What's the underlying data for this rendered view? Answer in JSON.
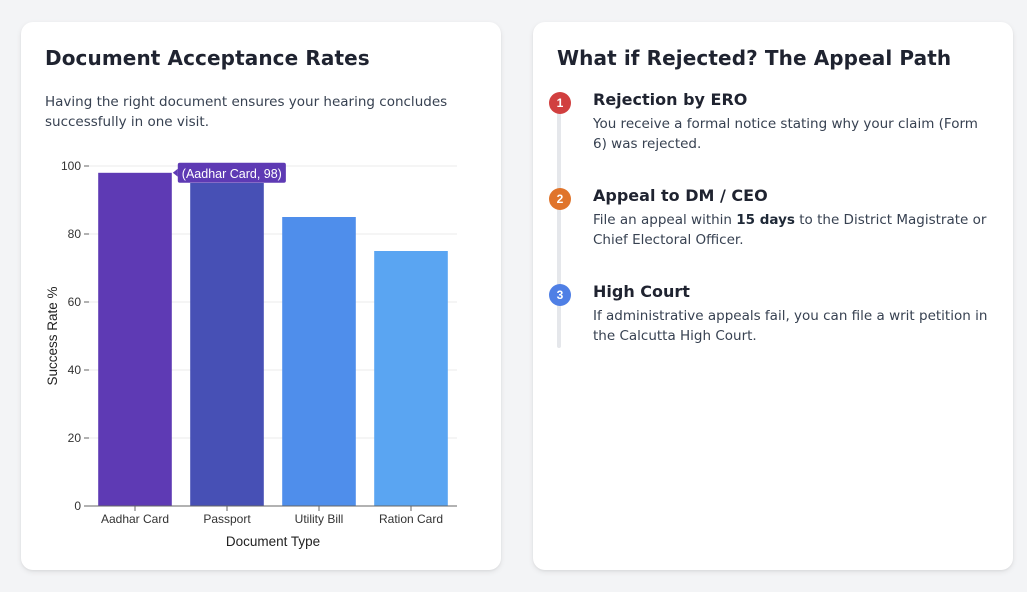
{
  "left_card": {
    "title": "Document Acceptance Rates",
    "description": "Having the right document ensures your hearing concludes successfully in one visit."
  },
  "chart_data": {
    "type": "bar",
    "categories": [
      "Aadhar Card",
      "Passport",
      "Utility Bill",
      "Ration Card"
    ],
    "values": [
      98,
      95,
      85,
      75
    ],
    "colors": [
      "#5e3ab4",
      "#4750b5",
      "#4f8eeb",
      "#5aa5f2"
    ],
    "xlabel": "Document Type",
    "ylabel": "Success Rate %",
    "ylim": [
      0,
      100
    ],
    "yticks": [
      0,
      20,
      40,
      60,
      80,
      100
    ],
    "grid": true,
    "tooltip": "(Aadhar Card, 98)",
    "tooltip_color": "#5e3ab4"
  },
  "right_card": {
    "title": "What if Rejected? The Appeal Path",
    "steps": [
      {
        "number": "1",
        "title": "Rejection by ERO",
        "desc": "You receive a formal notice stating why your claim (Form 6) was rejected.",
        "color": "#d13f3f"
      },
      {
        "number": "2",
        "title": "Appeal to DM / CEO",
        "desc_before": "File an appeal within ",
        "desc_bold": "15 days",
        "desc_after": " to the District Magistrate or Chief Electoral Officer.",
        "color": "#e0742b"
      },
      {
        "number": "3",
        "title": "High Court",
        "desc": "If administrative appeals fail, you can file a writ petition in the Calcutta High Court.",
        "color": "#4f7fe5"
      }
    ]
  }
}
